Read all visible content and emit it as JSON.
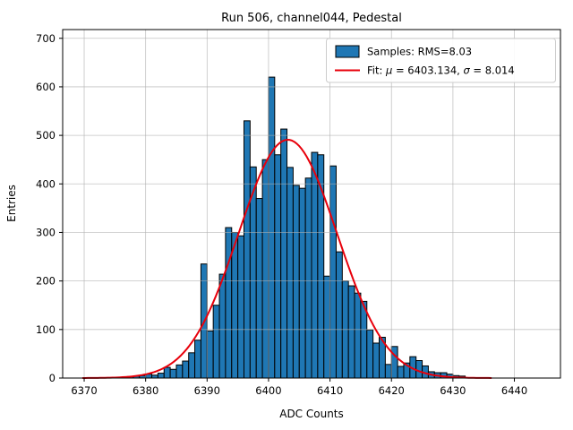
{
  "figure": {
    "background": "#ffffff",
    "title": "Run 506, channel044, Pedestal"
  },
  "chart_data": {
    "type": "bar",
    "subtype": "histogram-with-gaussian-fit",
    "title": "Run 506, channel044, Pedestal",
    "xlabel": "ADC Counts",
    "ylabel": "Entries",
    "xlim": [
      6366.5,
      6447.5
    ],
    "ylim": [
      0,
      718
    ],
    "x_ticks": [
      6370,
      6380,
      6390,
      6400,
      6410,
      6420,
      6430,
      6440
    ],
    "y_ticks": [
      0,
      100,
      200,
      300,
      400,
      500,
      600,
      700
    ],
    "grid": true,
    "grid_color": "#b0b0b0",
    "bar_color": "#1f77b4",
    "bar_edge_color": "#000000",
    "fit_color": "#e8000b",
    "histogram": {
      "bin_width": 1,
      "bin_left_edges": [
        6377,
        6378,
        6379,
        6380,
        6381,
        6382,
        6383,
        6384,
        6385,
        6386,
        6387,
        6388,
        6389,
        6390,
        6391,
        6392,
        6393,
        6394,
        6395,
        6396,
        6397,
        6398,
        6399,
        6400,
        6401,
        6402,
        6403,
        6404,
        6405,
        6406,
        6407,
        6408,
        6409,
        6410,
        6411,
        6412,
        6413,
        6414,
        6415,
        6416,
        6417,
        6418,
        6419,
        6420,
        6421,
        6422,
        6423,
        6424,
        6425,
        6426,
        6427,
        6428,
        6429,
        6430,
        6431
      ],
      "counts": [
        3,
        4,
        5,
        8,
        6,
        10,
        22,
        18,
        27,
        35,
        52,
        78,
        235,
        97,
        150,
        214,
        310,
        300,
        293,
        530,
        435,
        370,
        450,
        620,
        460,
        513,
        434,
        397,
        391,
        412,
        465,
        460,
        210,
        437,
        260,
        200,
        190,
        175,
        158,
        99,
        72,
        84,
        28,
        65,
        24,
        31,
        44,
        36,
        25,
        13,
        11,
        11,
        8,
        5,
        4
      ]
    },
    "fit_curve": {
      "shape": "gaussian",
      "mu": 6403.134,
      "sigma": 8.014,
      "amplitude": 491,
      "x_range": [
        6369.8,
        6436.5
      ]
    },
    "legend": {
      "position": "upper right",
      "entries": [
        {
          "type": "patch",
          "label": "Samples: RMS=8.03",
          "label_parts": [
            {
              "text": "Samples: RMS=8.03",
              "italic": false
            }
          ],
          "color": "#1f77b4"
        },
        {
          "type": "line",
          "label": "Fit: μ = 6403.134, σ = 8.014",
          "label_parts": [
            {
              "text": "Fit: ",
              "italic": false
            },
            {
              "text": "μ",
              "italic": true
            },
            {
              "text": " = 6403.134, ",
              "italic": false
            },
            {
              "text": "σ",
              "italic": true
            },
            {
              "text": " = 8.014",
              "italic": false
            }
          ],
          "color": "#e8000b"
        }
      ]
    }
  }
}
